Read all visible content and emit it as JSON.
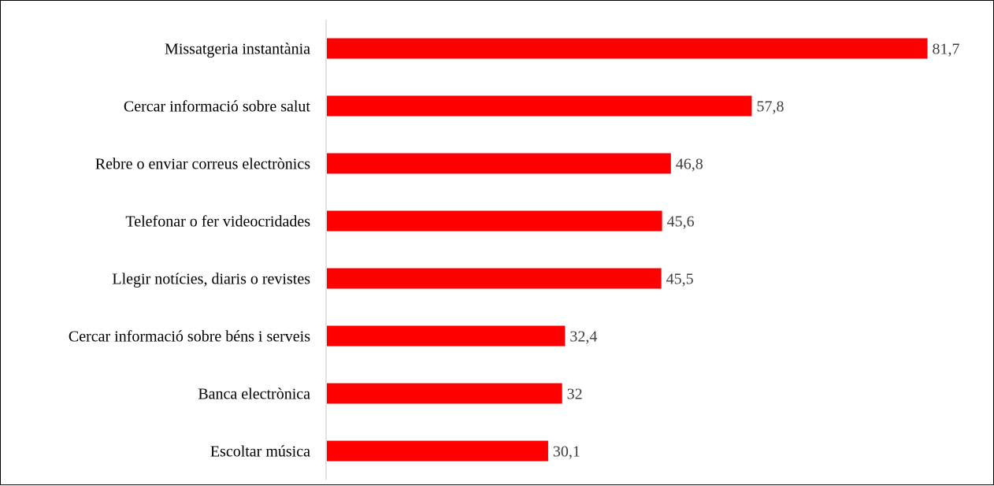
{
  "chart_data": {
    "type": "bar",
    "orientation": "horizontal",
    "categories": [
      "Missatgeria instantània",
      "Cercar informació sobre salut",
      "Rebre o enviar correus electrònics",
      "Telefonar o fer videocridades",
      "Llegir notícies, diaris o revistes",
      "Cercar informació sobre béns i serveis",
      "Banca electrònica",
      "Escoltar música"
    ],
    "values": [
      81.7,
      57.8,
      46.8,
      45.6,
      45.5,
      32.4,
      32,
      30.1
    ],
    "value_labels": [
      "81,7",
      "57,8",
      "46,8",
      "45,6",
      "45,5",
      "32,4",
      "32",
      "30,1"
    ],
    "xlim": [
      0,
      90
    ],
    "grid": false,
    "legend": "none",
    "bar_color": "#ff0000",
    "axis_color": "#d9d9d9"
  }
}
